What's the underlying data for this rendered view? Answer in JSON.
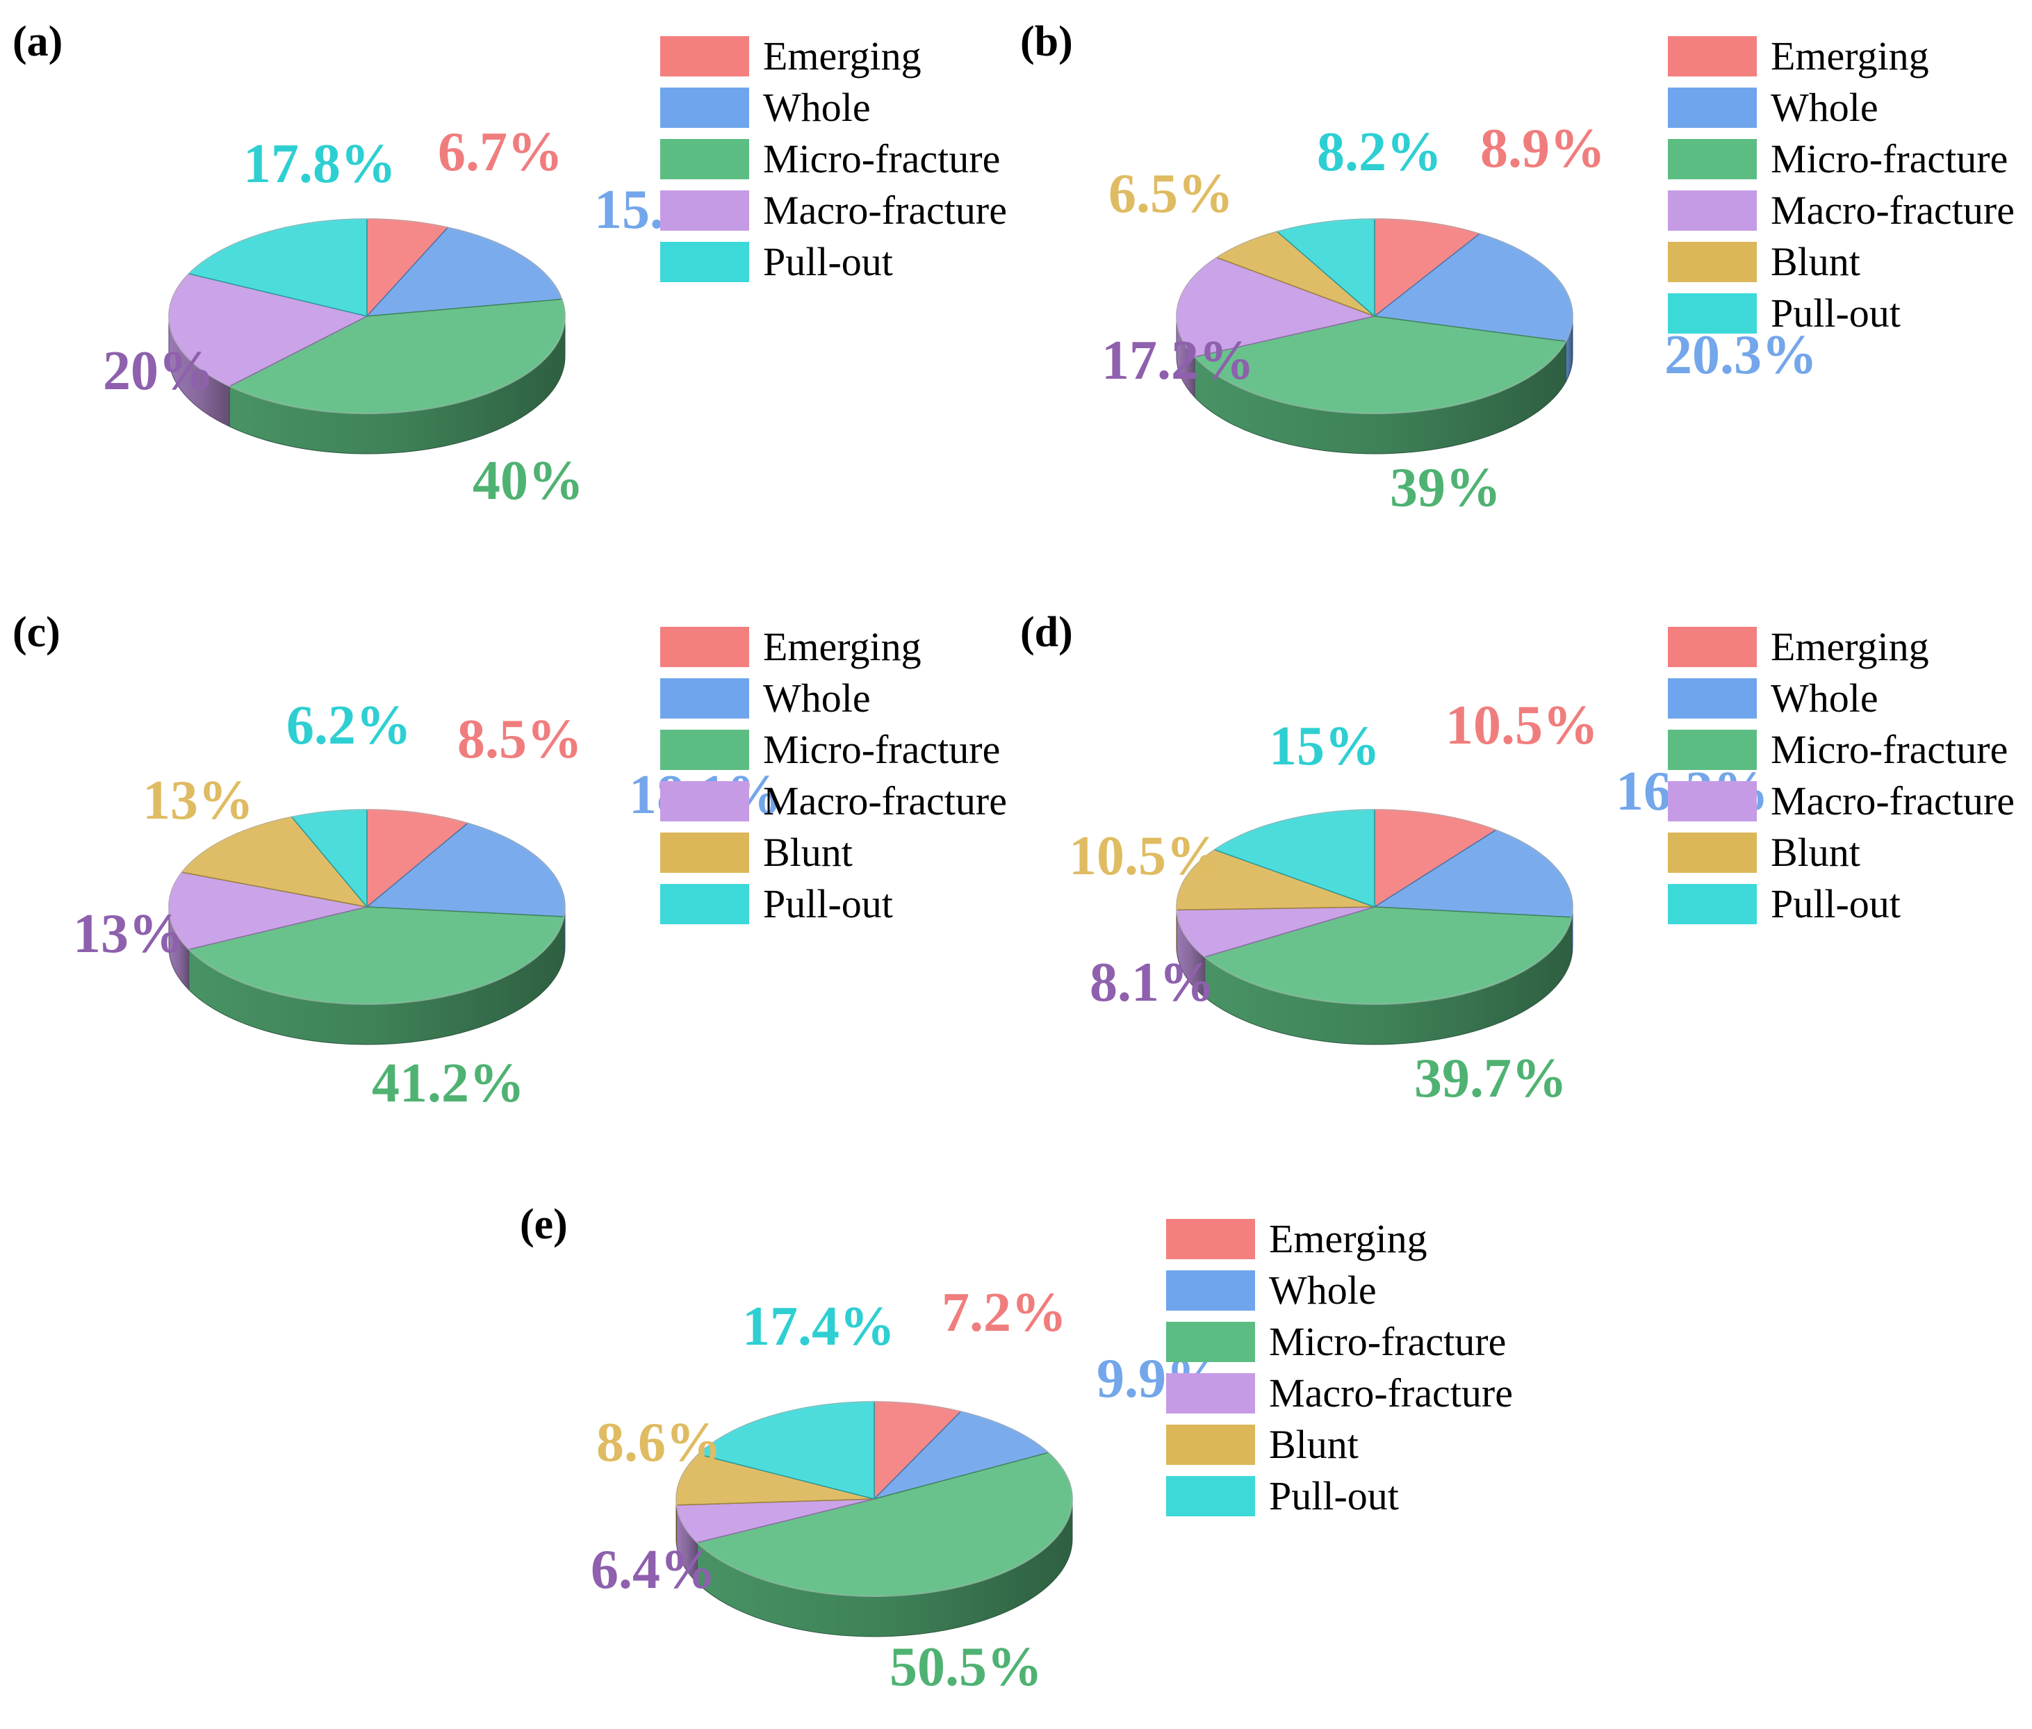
{
  "categories": [
    "Emerging",
    "Whole",
    "Micro-fracture",
    "Macro-fracture",
    "Blunt",
    "Pull-out"
  ],
  "colors": {
    "Emerging": "#f47f7f",
    "Whole": "#6fa5ec",
    "Micro-fracture": "#5cbd82",
    "Macro-fracture": "#c69be6",
    "Blunt": "#dcb759",
    "Pull-out": "#3dd9d9"
  },
  "label_colors": {
    "Emerging": "#f07d7d",
    "Whole": "#73a6ea",
    "Micro-fracture": "#4fb272",
    "Macro-fracture": "#8e60ad",
    "Blunt": "#dfbb62",
    "Pull-out": "#2ecfd2"
  },
  "chart_data": [
    {
      "type": "pie",
      "panel": "(a)",
      "legend": [
        "Emerging",
        "Whole",
        "Micro-fracture",
        "Macro-fracture",
        "Pull-out"
      ],
      "slices": [
        {
          "name": "Emerging",
          "value": 6.7,
          "label": "6.7%"
        },
        {
          "name": "Whole",
          "value": 15.5,
          "label": "15.5%"
        },
        {
          "name": "Micro-fracture",
          "value": 40,
          "label": "40%"
        },
        {
          "name": "Macro-fracture",
          "value": 20,
          "label": "20%"
        },
        {
          "name": "Pull-out",
          "value": 17.8,
          "label": "17.8%"
        }
      ]
    },
    {
      "type": "pie",
      "panel": "(b)",
      "legend": [
        "Emerging",
        "Whole",
        "Micro-fracture",
        "Macro-fracture",
        "Blunt",
        "Pull-out"
      ],
      "slices": [
        {
          "name": "Emerging",
          "value": 8.9,
          "label": "8.9%"
        },
        {
          "name": "Whole",
          "value": 20.3,
          "label": "20.3%"
        },
        {
          "name": "Micro-fracture",
          "value": 39,
          "label": "39%"
        },
        {
          "name": "Macro-fracture",
          "value": 17.2,
          "label": "17.2%"
        },
        {
          "name": "Blunt",
          "value": 6.5,
          "label": "6.5%"
        },
        {
          "name": "Pull-out",
          "value": 8.2,
          "label": "8.2%"
        }
      ]
    },
    {
      "type": "pie",
      "panel": "(c)",
      "legend": [
        "Emerging",
        "Whole",
        "Micro-fracture",
        "Macro-fracture",
        "Blunt",
        "Pull-out"
      ],
      "slices": [
        {
          "name": "Emerging",
          "value": 8.5,
          "label": "8.5%"
        },
        {
          "name": "Whole",
          "value": 18.1,
          "label": "18.1%"
        },
        {
          "name": "Micro-fracture",
          "value": 41.2,
          "label": "41.2%"
        },
        {
          "name": "Macro-fracture",
          "value": 13,
          "label": "13%"
        },
        {
          "name": "Blunt",
          "value": 13,
          "label": "13%"
        },
        {
          "name": "Pull-out",
          "value": 6.2,
          "label": "6.2%"
        }
      ]
    },
    {
      "type": "pie",
      "panel": "(d)",
      "legend": [
        "Emerging",
        "Whole",
        "Micro-fracture",
        "Macro-fracture",
        "Blunt",
        "Pull-out"
      ],
      "slices": [
        {
          "name": "Emerging",
          "value": 10.5,
          "label": "10.5%"
        },
        {
          "name": "Whole",
          "value": 16.2,
          "label": "16.2%"
        },
        {
          "name": "Micro-fracture",
          "value": 39.7,
          "label": "39.7%"
        },
        {
          "name": "Macro-fracture",
          "value": 8.1,
          "label": "8.1%"
        },
        {
          "name": "Blunt",
          "value": 10.5,
          "label": "10.5%"
        },
        {
          "name": "Pull-out",
          "value": 15,
          "label": "15%"
        }
      ]
    },
    {
      "type": "pie",
      "panel": "(e)",
      "legend": [
        "Emerging",
        "Whole",
        "Micro-fracture",
        "Macro-fracture",
        "Blunt",
        "Pull-out"
      ],
      "slices": [
        {
          "name": "Emerging",
          "value": 7.2,
          "label": "7.2%"
        },
        {
          "name": "Whole",
          "value": 9.9,
          "label": "9.9%"
        },
        {
          "name": "Micro-fracture",
          "value": 50.5,
          "label": "50.5%"
        },
        {
          "name": "Macro-fracture",
          "value": 6.4,
          "label": "6.4%"
        },
        {
          "name": "Blunt",
          "value": 8.6,
          "label": "8.6%"
        },
        {
          "name": "Pull-out",
          "value": 17.4,
          "label": "17.4%"
        }
      ]
    }
  ]
}
